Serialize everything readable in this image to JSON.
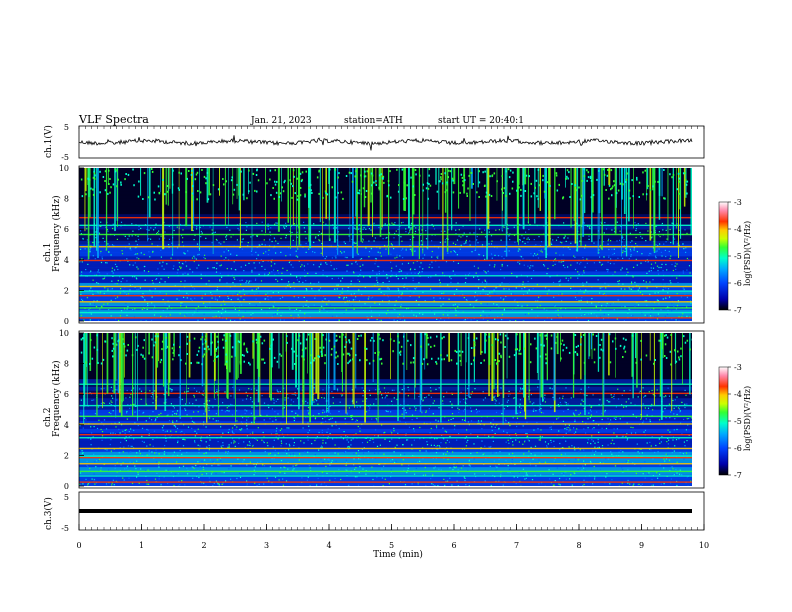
{
  "header": {
    "title": "VLF Spectra",
    "date": "Jan. 21, 2023",
    "station": "station=ATH",
    "start": "start UT = 20:40:1"
  },
  "colorbar": {
    "label": "log(PSD)(V²/Hz)",
    "ticks": [
      "-3",
      "-4",
      "-5",
      "-6",
      "-7"
    ],
    "range": [
      -7,
      -3
    ],
    "colors": [
      "#000000",
      "#0000aa",
      "#0044ff",
      "#00aaff",
      "#00ffcc",
      "#33ff33",
      "#ccff00",
      "#ffcc00",
      "#ff3300",
      "#ff88aa",
      "#ffffff"
    ]
  },
  "chart_data": [
    {
      "type": "line",
      "panel": "ch1-waveform",
      "ylabel": "ch.1(V)",
      "yticks": [
        "5",
        "-5"
      ],
      "ylim": [
        -5,
        5
      ],
      "xlim": [
        0,
        10
      ],
      "description_values": {
        "mean": 0.0,
        "amplitude_approx": 1.0
      }
    },
    {
      "type": "heatmap",
      "panel": "ch1-spectrogram",
      "ylabel_top": "ch.1",
      "ylabel": "Frequency (kHz)",
      "yticks": [
        "0",
        "2",
        "4",
        "6",
        "8",
        "10"
      ],
      "ylim": [
        0,
        10
      ],
      "xlim": [
        0,
        9.8
      ],
      "lines_kHz": [
        0.25,
        0.6,
        0.9,
        1.3,
        1.7,
        2.0,
        2.3,
        3.0,
        4.0,
        4.9,
        5.7,
        6.3,
        6.8
      ],
      "value_range": [
        -7,
        -3
      ]
    },
    {
      "type": "heatmap",
      "panel": "ch2-spectrogram",
      "ylabel_top": "ch.2",
      "ylabel": "Frequency (kHz)",
      "yticks": [
        "0",
        "2",
        "4",
        "6",
        "8",
        "10"
      ],
      "ylim": [
        0,
        10
      ],
      "xlim": [
        0,
        9.8
      ],
      "lines_kHz": [
        0.3,
        0.7,
        1.0,
        1.5,
        1.9,
        2.0,
        2.5,
        3.2,
        3.4,
        4.1,
        4.6,
        5.3,
        6.1,
        6.7
      ],
      "value_range": [
        -7,
        -3
      ]
    },
    {
      "type": "line",
      "panel": "ch3-waveform",
      "ylabel": "ch.3(V)",
      "yticks": [
        "5",
        "-5"
      ],
      "ylim": [
        -5,
        5
      ],
      "xlim": [
        0,
        10
      ],
      "description_values": {
        "mean": -1.0
      }
    }
  ],
  "xaxis": {
    "label": "Time (min)",
    "ticks": [
      "0",
      "1",
      "2",
      "3",
      "4",
      "5",
      "6",
      "7",
      "8",
      "9",
      "10"
    ],
    "range": [
      0,
      10
    ]
  }
}
